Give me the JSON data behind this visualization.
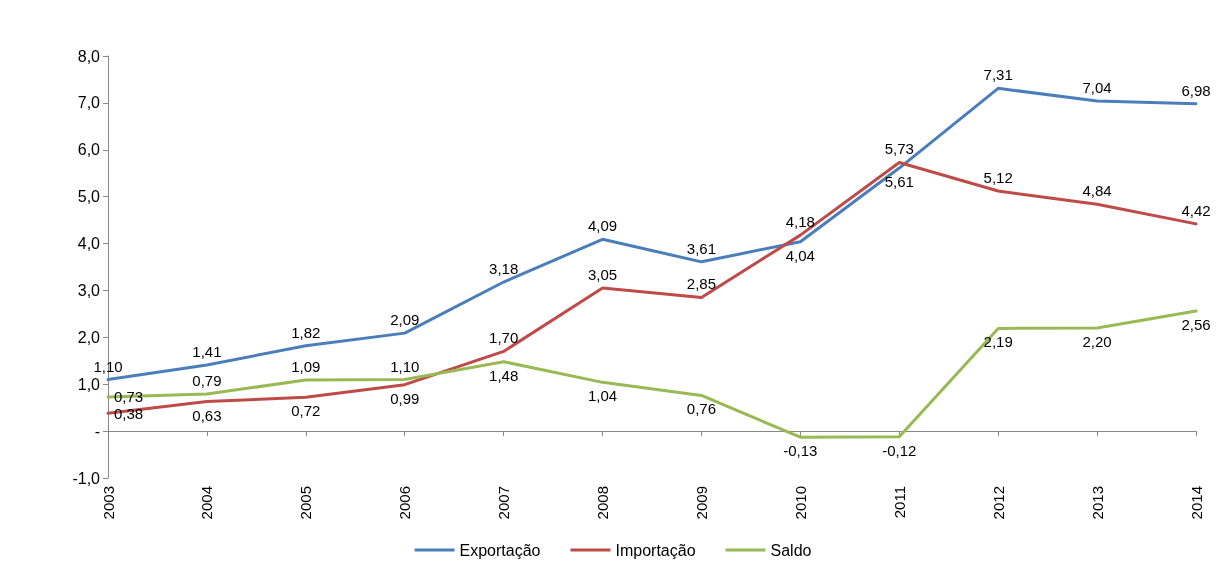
{
  "chart_data": {
    "type": "line",
    "categories": [
      "2003",
      "2004",
      "2005",
      "2006",
      "2007",
      "2008",
      "2009",
      "2010",
      "2011",
      "2012",
      "2013",
      "2014"
    ],
    "series": [
      {
        "name": "Exportação",
        "color": "#4a7ebb",
        "values": [
          1.1,
          1.41,
          1.82,
          2.09,
          3.18,
          4.09,
          3.61,
          4.04,
          5.61,
          7.31,
          7.04,
          6.98
        ],
        "value_labels": [
          "1,10",
          "1,41",
          "1,82",
          "2,09",
          "3,18",
          "4,09",
          "3,61",
          "4,04",
          "5,61",
          "7,31",
          "7,04",
          "6,98"
        ]
      },
      {
        "name": "Importação",
        "color": "#be4b48",
        "values": [
          0.38,
          0.63,
          0.72,
          0.99,
          1.7,
          3.05,
          2.85,
          4.18,
          5.73,
          5.12,
          4.84,
          4.42
        ],
        "value_labels": [
          "0,38",
          "0,63",
          "0,72",
          "0,99",
          "1,70",
          "3,05",
          "2,85",
          "4,18",
          "5,73",
          "5,12",
          "4,84",
          "4,42"
        ]
      },
      {
        "name": "Saldo",
        "color": "#98b954",
        "values": [
          0.73,
          0.79,
          1.09,
          1.1,
          1.48,
          1.04,
          0.76,
          -0.13,
          -0.12,
          2.19,
          2.2,
          2.56
        ],
        "value_labels": [
          "0,73",
          "0,79",
          "1,09",
          "1,10",
          "1,48",
          "1,04",
          "0,76",
          "-0,13",
          "-0,12",
          "2,19",
          "2,20",
          "2,56"
        ]
      }
    ],
    "ylim": [
      -1,
      8
    ],
    "yticks": [
      {
        "value": -1,
        "label": "-1,0"
      },
      {
        "value": 0,
        "label": "-"
      },
      {
        "value": 1,
        "label": "1,0"
      },
      {
        "value": 2,
        "label": "2,0"
      },
      {
        "value": 3,
        "label": "3,0"
      },
      {
        "value": 4,
        "label": "4,0"
      },
      {
        "value": 5,
        "label": "5,0"
      },
      {
        "value": 6,
        "label": "6,0"
      },
      {
        "value": 7,
        "label": "7,0"
      },
      {
        "value": 8,
        "label": "8,0"
      }
    ],
    "legend": "bottom",
    "marker": "none",
    "line_style": "solid"
  }
}
